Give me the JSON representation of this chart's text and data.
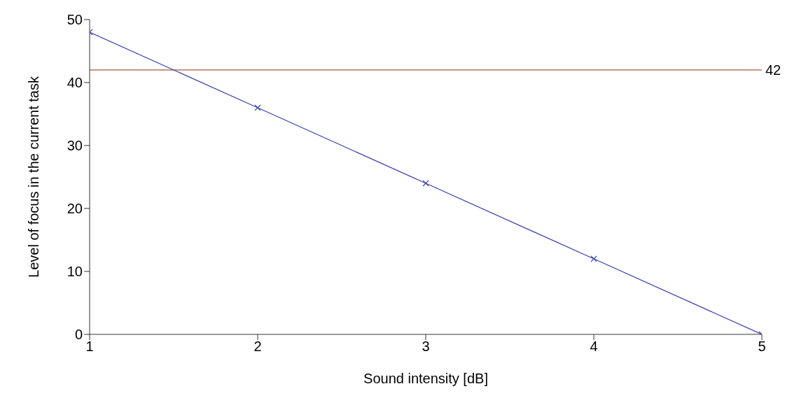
{
  "chart_data": {
    "type": "line",
    "xlabel": "Sound intensity [dB]",
    "ylabel": "Level of focus in the current task",
    "x": [
      1,
      2,
      3,
      4,
      5
    ],
    "series": [
      {
        "color": "#3a44b0",
        "values": [
          48,
          36,
          24,
          12,
          0
        ]
      }
    ],
    "xlim": [
      1,
      5
    ],
    "xticks": [
      1,
      2,
      3,
      4,
      5
    ],
    "ylim": [
      0,
      50
    ],
    "yticks": [
      0,
      10,
      20,
      30,
      40,
      50
    ],
    "ref_lines": [
      {
        "axis": "y",
        "value": 42,
        "label": "42",
        "color": "#b8705f"
      }
    ],
    "marker": "cross",
    "line_style": "solid",
    "grid": false,
    "legend": false
  }
}
